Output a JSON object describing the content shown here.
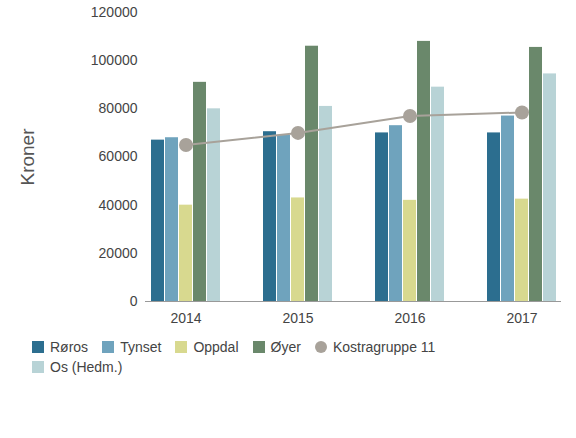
{
  "chart_data": {
    "type": "bar",
    "y_label": "Kroner",
    "categories": [
      "2014",
      "2015",
      "2016",
      "2017"
    ],
    "ylim": [
      0,
      120000
    ],
    "yticks": [
      0,
      20000,
      40000,
      60000,
      80000,
      100000,
      120000
    ],
    "grid": false,
    "legend": "bottom",
    "series": [
      {
        "name": "Røros",
        "color": "#2c6e8f",
        "values": [
          67000,
          70500,
          70000,
          70000
        ]
      },
      {
        "name": "Tynset",
        "color": "#6fa3bd",
        "values": [
          68000,
          69000,
          73000,
          77000
        ]
      },
      {
        "name": "Oppdal",
        "color": "#d8d98f",
        "values": [
          40000,
          43000,
          42000,
          42500
        ]
      },
      {
        "name": "Øyer",
        "color": "#6a886b",
        "values": [
          91000,
          106000,
          108000,
          105500
        ]
      },
      {
        "name": "Kostragruppe 11",
        "color": "#a8a29a",
        "type": "line",
        "marker": "circle",
        "values": [
          65000,
          70000,
          77000,
          78500
        ]
      },
      {
        "name": "Os (Hedm.)",
        "color": "#b8d3d6",
        "values": [
          80000,
          81000,
          89000,
          94500
        ]
      }
    ]
  }
}
